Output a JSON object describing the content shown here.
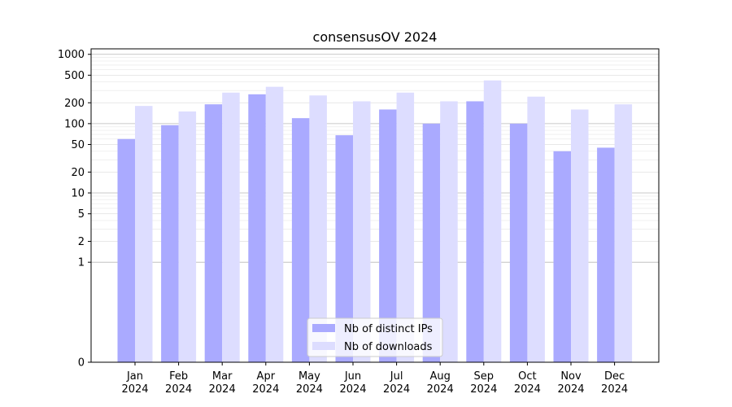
{
  "chart_data": {
    "type": "bar",
    "title": "consensusOV 2024",
    "xlabel": "",
    "ylabel": "",
    "y_scale": "symlog",
    "ylim": [
      0,
      1200
    ],
    "y_ticks": [
      0,
      1,
      2,
      5,
      10,
      20,
      50,
      100,
      200,
      500,
      1000
    ],
    "y_tick_labels": [
      "0",
      "1",
      "2",
      "5",
      "10",
      "20",
      "50",
      "100",
      "200",
      "500",
      "1000"
    ],
    "grid": true,
    "legend_position": "bottom-center",
    "categories": [
      [
        "Jan",
        "2024"
      ],
      [
        "Feb",
        "2024"
      ],
      [
        "Mar",
        "2024"
      ],
      [
        "Apr",
        "2024"
      ],
      [
        "May",
        "2024"
      ],
      [
        "Jun",
        "2024"
      ],
      [
        "Jul",
        "2024"
      ],
      [
        "Aug",
        "2024"
      ],
      [
        "Sep",
        "2024"
      ],
      [
        "Oct",
        "2024"
      ],
      [
        "Nov",
        "2024"
      ],
      [
        "Dec",
        "2024"
      ]
    ],
    "series": [
      {
        "name": "Nb of distinct IPs",
        "color": "#aaaaff",
        "values": [
          60,
          95,
          190,
          265,
          120,
          68,
          160,
          100,
          210,
          100,
          40,
          45
        ]
      },
      {
        "name": "Nb of downloads",
        "color": "#ddddff",
        "values": [
          180,
          150,
          280,
          340,
          255,
          210,
          280,
          210,
          420,
          245,
          160,
          190
        ]
      }
    ]
  }
}
